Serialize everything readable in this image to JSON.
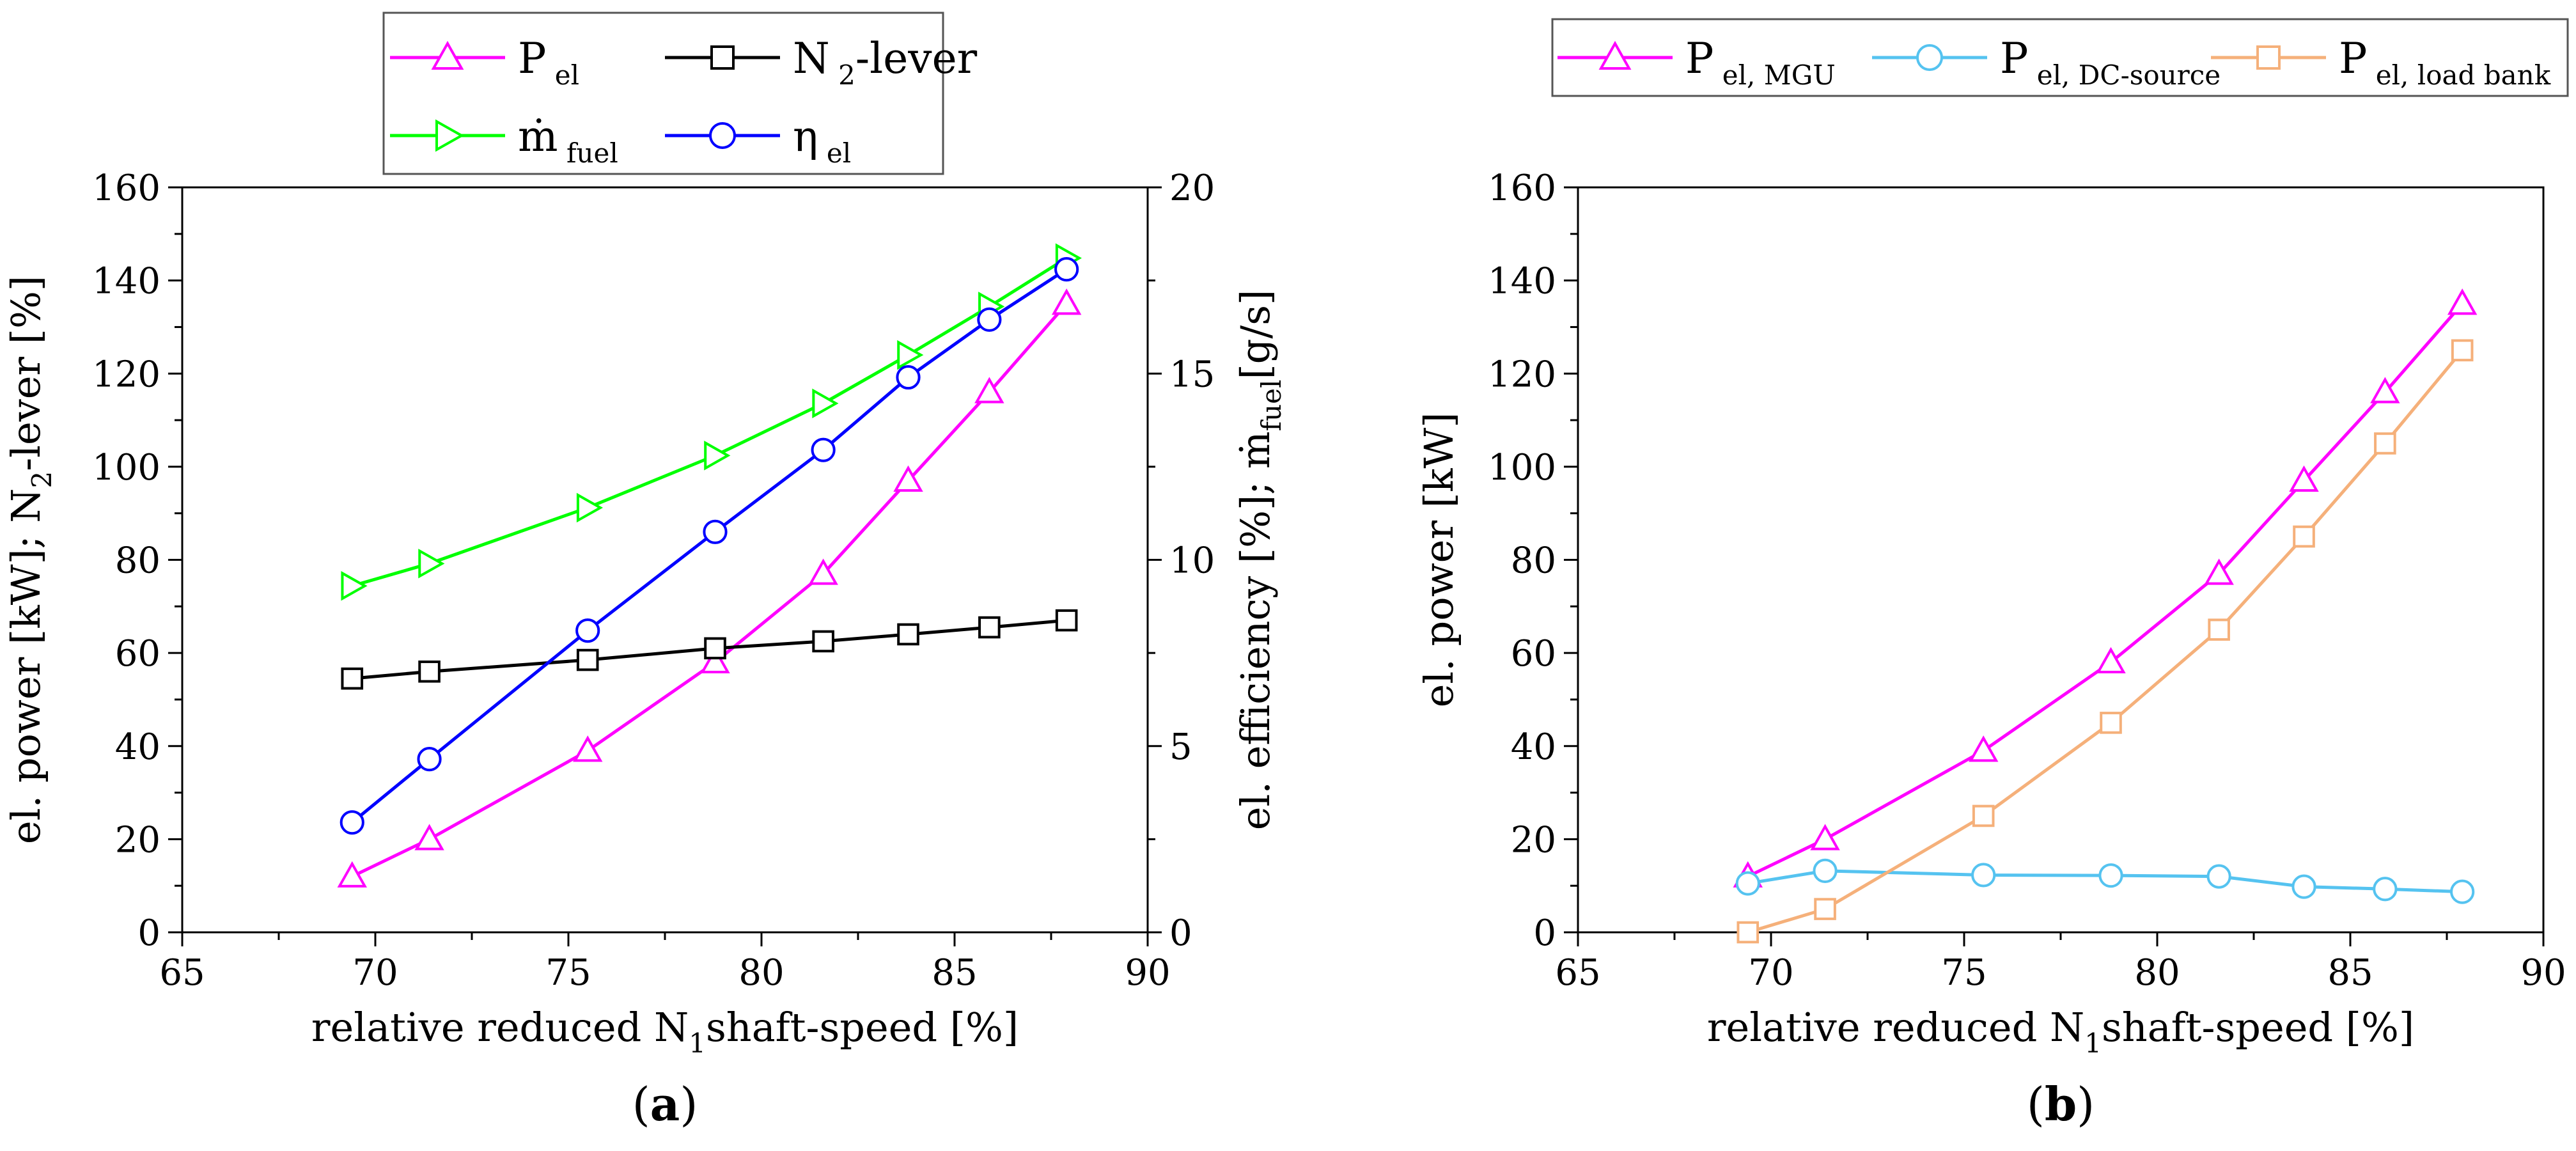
{
  "chart_data": [
    {
      "type": "line",
      "panel_label": "(a)",
      "panel_letter": "a",
      "xlabel": "relative reduced N1shaft-speed [%]",
      "xlabel_parts": [
        "relative reduced N",
        "1",
        "shaft-speed [%]"
      ],
      "ylabel": "el. power [kW]; N2-lever [%]",
      "ylabel_parts": [
        "el. power [kW]; N",
        "2",
        "-lever [%]"
      ],
      "y2label": "el. efficiency [%]; ṁfuel[g/s]",
      "y2label_parts": [
        "el. efficiency [%]; ",
        "ṁ",
        "fuel",
        "[g/s]"
      ],
      "xlim": [
        65,
        90
      ],
      "ylim": [
        0,
        160
      ],
      "y2lim": [
        0,
        20
      ],
      "xticks": [
        65,
        70,
        75,
        80,
        85,
        90
      ],
      "yticks": [
        0,
        20,
        40,
        60,
        80,
        100,
        120,
        140,
        160
      ],
      "y2ticks": [
        0,
        5,
        10,
        15,
        20
      ],
      "legend_position": "top-center",
      "series": [
        {
          "name": "P el",
          "name_main": "P",
          "name_sub": "el",
          "marker": "triangle-up",
          "color": "#ff00ff",
          "axis": "left",
          "x": [
            69.4,
            71.4,
            75.5,
            78.8,
            81.6,
            83.8,
            85.9,
            87.9
          ],
          "values": [
            12,
            20,
            39,
            58,
            77,
            97,
            116,
            135
          ]
        },
        {
          "name": "N 2-lever",
          "name_main": "N",
          "name_sub": "2",
          "name_rest": "-lever",
          "marker": "square",
          "color": "#000000",
          "axis": "left",
          "x": [
            69.4,
            71.4,
            75.5,
            78.8,
            81.6,
            83.8,
            85.9,
            87.9
          ],
          "values": [
            54.5,
            56,
            58.5,
            61,
            62.5,
            64,
            65.5,
            67
          ]
        },
        {
          "name": "ṁfuel",
          "name_main": "ṁ",
          "name_sub": "fuel",
          "marker": "triangle-right",
          "color": "#00ff00",
          "axis": "right",
          "x": [
            69.4,
            71.4,
            75.5,
            78.8,
            81.6,
            83.8,
            85.9,
            87.9
          ],
          "values": [
            9.3,
            9.9,
            11.4,
            12.8,
            14.2,
            15.5,
            16.8,
            18.1
          ]
        },
        {
          "name": "ηel",
          "name_main": "η",
          "name_sub": "el",
          "marker": "circle",
          "color": "#0000ff",
          "axis": "right",
          "x": [
            69.4,
            71.4,
            75.5,
            78.8,
            81.6,
            83.8,
            85.9,
            87.9
          ],
          "values": [
            2.95,
            4.65,
            8.1,
            10.75,
            12.95,
            14.9,
            16.45,
            17.8
          ]
        }
      ]
    },
    {
      "type": "line",
      "panel_label": "(b)",
      "panel_letter": "b",
      "xlabel": "relative reduced N1shaft-speed [%]",
      "xlabel_parts": [
        "relative reduced N",
        "1",
        "shaft-speed [%]"
      ],
      "ylabel": "el. power [kW]",
      "xlim": [
        65,
        90
      ],
      "ylim": [
        0,
        160
      ],
      "xticks": [
        65,
        70,
        75,
        80,
        85,
        90
      ],
      "yticks": [
        0,
        20,
        40,
        60,
        80,
        100,
        120,
        140,
        160
      ],
      "legend_position": "top",
      "series": [
        {
          "name": "P el, MGU",
          "name_main": "P",
          "name_sub": "el, MGU",
          "marker": "triangle-up",
          "color": "#ff00ff",
          "x": [
            69.4,
            71.4,
            75.5,
            78.8,
            81.6,
            83.8,
            85.9,
            87.9
          ],
          "values": [
            12,
            20,
            39,
            58,
            77,
            97,
            116,
            135
          ]
        },
        {
          "name": "P el, DC-source",
          "name_main": "P",
          "name_sub": "el, DC-source",
          "marker": "circle",
          "color": "#55c3f0",
          "x": [
            69.4,
            71.4,
            75.5,
            78.8,
            81.6,
            83.8,
            85.9,
            87.9
          ],
          "values": [
            10.5,
            13.2,
            12.3,
            12.2,
            12,
            9.8,
            9.3,
            8.7
          ]
        },
        {
          "name": "P el, load bank",
          "name_main": "P",
          "name_sub": "el, load bank",
          "marker": "square",
          "color": "#f5b07a",
          "x": [
            69.4,
            71.4,
            75.5,
            78.8,
            81.6,
            83.8,
            85.9,
            87.9
          ],
          "values": [
            0,
            5,
            25,
            45,
            65,
            85,
            105,
            125
          ]
        }
      ]
    }
  ]
}
